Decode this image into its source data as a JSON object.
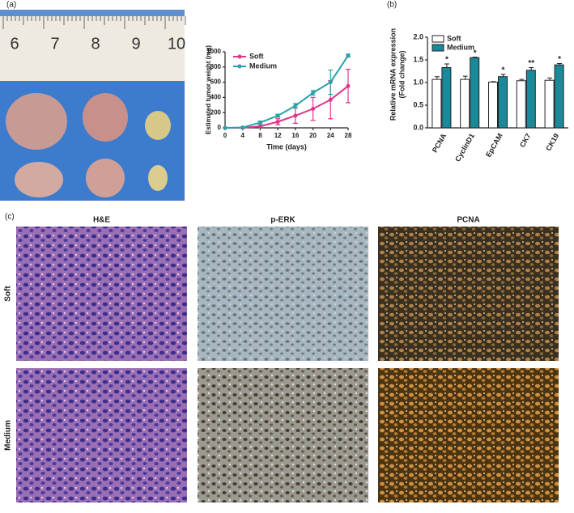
{
  "panel_labels": [
    "(a)",
    "(b)",
    "(c)"
  ],
  "photo": {
    "ruler_labels": [
      "6",
      "7",
      "8",
      "9",
      "10"
    ]
  },
  "chart_data": [
    {
      "type": "line",
      "xlabel": "Time (days)",
      "ylabel": "Estimated tumor weight (mg)",
      "x": [
        0,
        4,
        8,
        12,
        16,
        20,
        24,
        28
      ],
      "series": [
        {
          "name": "Soft",
          "color": "#e0358a",
          "values": [
            0,
            0,
            20,
            80,
            160,
            250,
            370,
            550
          ],
          "errors": [
            0,
            0,
            10,
            40,
            100,
            150,
            250,
            220
          ]
        },
        {
          "name": "Medium",
          "color": "#2aa3a8",
          "values": [
            0,
            5,
            70,
            160,
            290,
            460,
            600,
            950
          ],
          "errors": [
            0,
            5,
            20,
            20,
            30,
            30,
            160,
            20
          ]
        }
      ],
      "xlim": [
        0,
        28
      ],
      "xticks": [
        0,
        4,
        8,
        12,
        16,
        20,
        24,
        28
      ],
      "ylim": [
        0,
        1000
      ],
      "yticks": [
        0,
        200,
        400,
        600,
        800,
        1000
      ],
      "legend": "top-left"
    },
    {
      "type": "bar",
      "ylabel": [
        "Relative mRNA expression",
        "(Fold change)"
      ],
      "categories": [
        "PCNA",
        "CyclinD1",
        "EpCAM",
        "CK7",
        "CK19"
      ],
      "series": [
        {
          "name": "Soft",
          "color": "#ffffff",
          "values": [
            1.07,
            1.07,
            1.01,
            1.04,
            1.05
          ],
          "errors": [
            0.06,
            0.07,
            0.01,
            0.03,
            0.05
          ]
        },
        {
          "name": "Medium",
          "color": "#1a8a9a",
          "values": [
            1.33,
            1.55,
            1.13,
            1.27,
            1.39
          ],
          "errors": [
            0.08,
            0.01,
            0.05,
            0.06,
            0.03
          ]
        }
      ],
      "annotations": [
        "*",
        "*",
        "*",
        "**",
        "*"
      ],
      "ylim": [
        0,
        2
      ],
      "yticks": [
        {
          "value": 0,
          "label": "0.0"
        },
        {
          "value": 0.5,
          "label": "0.5"
        },
        {
          "value": 1,
          "label": "1.0"
        },
        {
          "value": 1.5,
          "label": "1.5"
        },
        {
          "value": 2,
          "label": "2.0"
        }
      ],
      "legend": "top-left"
    }
  ],
  "micrographs": {
    "columns": [
      "H&E",
      "p-ERK",
      "PCNA"
    ],
    "rows": [
      "Soft",
      "Medium"
    ]
  }
}
